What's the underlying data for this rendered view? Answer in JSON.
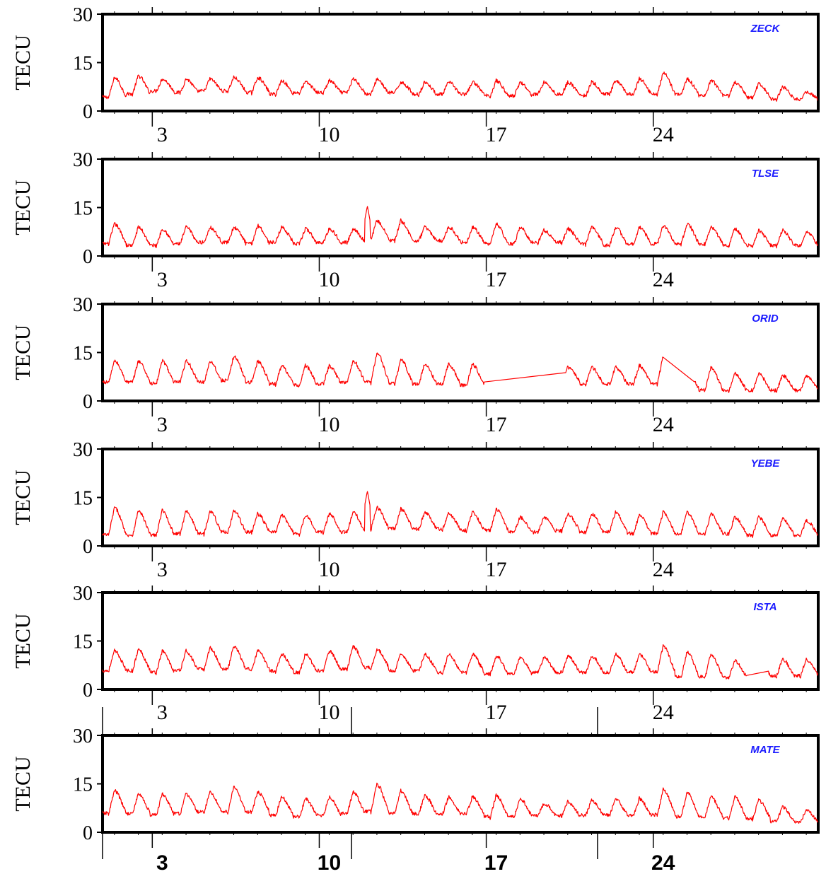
{
  "figure": {
    "line_color": "#ff0000",
    "station_color": "#1a1aff",
    "frame_color": "#000000"
  },
  "chart_data": [
    {
      "type": "line",
      "station": "ZECK",
      "ylabel": "TECU",
      "yticks": [
        "0",
        "15",
        "30"
      ],
      "ylim": [
        0,
        30
      ],
      "xlim": [
        0.5,
        30.5
      ],
      "xticks": [
        "3",
        "10",
        "17",
        "24"
      ],
      "xtick_values": [
        3,
        10,
        17,
        24
      ],
      "daily_min": [
        4,
        5,
        6,
        5.5,
        6,
        6,
        5.5,
        5,
        5.5,
        5.5,
        5.5,
        5,
        5.5,
        5,
        5,
        5,
        4.5,
        4.5,
        5,
        5,
        4.5,
        5,
        5,
        5,
        5,
        4.5,
        4.5,
        4,
        3.5,
        3.5
      ],
      "daily_max": [
        10.5,
        11,
        10,
        10,
        10,
        10.5,
        10.5,
        9.5,
        9,
        9.5,
        10,
        10,
        9,
        9,
        9,
        9,
        9.5,
        9,
        9,
        9,
        9,
        9.5,
        10,
        12,
        10,
        9.5,
        9,
        8.5,
        7.5,
        6
      ],
      "gaps": [],
      "spikes": []
    },
    {
      "type": "line",
      "station": "TLSE",
      "ylabel": "TECU",
      "yticks": [
        "0",
        "15",
        "30"
      ],
      "ylim": [
        0,
        30
      ],
      "xlim": [
        0.5,
        30.5
      ],
      "xticks": [
        "3",
        "10",
        "17",
        "24"
      ],
      "xtick_values": [
        3,
        10,
        17,
        24
      ],
      "daily_min": [
        3.5,
        3,
        3,
        3.5,
        4,
        4,
        3.5,
        4,
        3.5,
        4,
        4,
        5,
        4.5,
        4.5,
        4.5,
        4,
        3.5,
        3.5,
        4,
        4,
        3.5,
        3,
        3.5,
        3.5,
        3.5,
        3.5,
        3,
        3,
        3,
        3
      ],
      "daily_max": [
        10,
        9,
        8.5,
        9,
        9,
        9,
        9.5,
        9,
        8.5,
        8.5,
        8.5,
        11,
        11,
        9,
        9,
        9,
        10,
        9,
        8,
        8.5,
        9,
        9,
        9,
        9.5,
        10,
        9,
        8.5,
        8,
        8,
        7.5
      ],
      "gaps": [],
      "spikes": [
        {
          "x": 11.6,
          "y": 15.5
        }
      ]
    },
    {
      "type": "line",
      "station": "ORID",
      "ylabel": "TECU",
      "yticks": [
        "0",
        "15",
        "30"
      ],
      "ylim": [
        0,
        30
      ],
      "xlim": [
        0.5,
        30.5
      ],
      "xticks": [
        "3",
        "10",
        "17",
        "24"
      ],
      "xtick_values": [
        3,
        10,
        17,
        24
      ],
      "daily_min": [
        5.5,
        5.5,
        5,
        5.5,
        5.5,
        6,
        5.5,
        5,
        4.5,
        5,
        5.5,
        5.5,
        5,
        5,
        5,
        4.5,
        6,
        6,
        6,
        6,
        5,
        5,
        5,
        5,
        3.5,
        3,
        3,
        3,
        3,
        3
      ],
      "daily_max": [
        12.5,
        12.5,
        12.5,
        12.5,
        12.5,
        14,
        12.5,
        11,
        11,
        11,
        12.5,
        15,
        13,
        11.5,
        11.5,
        11.5,
        11,
        10,
        8,
        10.5,
        10.5,
        10.5,
        11,
        14,
        9,
        10.5,
        8.5,
        8.5,
        8,
        8
      ],
      "gaps": [
        [
          16.5,
          19.9
        ],
        [
          24.0,
          25.3
        ]
      ],
      "spikes": []
    },
    {
      "type": "line",
      "station": "YEBE",
      "ylabel": "TECU",
      "yticks": [
        "0",
        "15",
        "30"
      ],
      "ylim": [
        0,
        30
      ],
      "xlim": [
        0.5,
        30.5
      ],
      "xticks": [
        "3",
        "10",
        "17",
        "24"
      ],
      "xtick_values": [
        3,
        10,
        17,
        24
      ],
      "daily_min": [
        3,
        3,
        3,
        3.5,
        3.5,
        4,
        4,
        4,
        3.5,
        4,
        4,
        5,
        5,
        5,
        5,
        4.5,
        4.5,
        4,
        4,
        4.5,
        4,
        4,
        3.5,
        3.5,
        3.5,
        3.5,
        3.5,
        3,
        3,
        3
      ],
      "daily_max": [
        12,
        11,
        11,
        11,
        11,
        11,
        10,
        9.5,
        9.5,
        10,
        10.5,
        12,
        11.5,
        10.5,
        10,
        10.5,
        11.5,
        9,
        9,
        10,
        10,
        10.5,
        9.5,
        10.5,
        10.5,
        10,
        9,
        9,
        8.5,
        8
      ],
      "gaps": [],
      "spikes": [
        {
          "x": 11.6,
          "y": 17
        }
      ]
    },
    {
      "type": "line",
      "station": "ISTA",
      "ylabel": "TECU",
      "yticks": [
        "0",
        "15",
        "30"
      ],
      "ylim": [
        0,
        30
      ],
      "xlim": [
        0.5,
        30.5
      ],
      "xticks": [
        "3",
        "10",
        "17",
        "24"
      ],
      "xtick_values": [
        3,
        10,
        17,
        24
      ],
      "daily_min": [
        5.5,
        5.5,
        5,
        5.5,
        6,
        6,
        6,
        5.5,
        5,
        5.5,
        6,
        6.5,
        5.5,
        5.5,
        5,
        5,
        4.5,
        4.5,
        5,
        5,
        5,
        5,
        5,
        5,
        3.5,
        3.5,
        3.5,
        4,
        4,
        4
      ],
      "daily_max": [
        12,
        12.5,
        12,
        12,
        13,
        13.5,
        12,
        11,
        11,
        12,
        13.5,
        12.5,
        11,
        11,
        11,
        11,
        10.5,
        10,
        10,
        10.5,
        10.5,
        11,
        11,
        13.5,
        12,
        11,
        9,
        9,
        9.5,
        9.5
      ],
      "gaps": [
        [
          27.5,
          28.4
        ]
      ],
      "spikes": []
    },
    {
      "type": "line",
      "station": "MATE",
      "ylabel": "TECU",
      "yticks": [
        "0",
        "15",
        "30"
      ],
      "ylim": [
        0,
        30
      ],
      "xlim": [
        0.5,
        30.5
      ],
      "xticks": [
        "3",
        "10",
        "17",
        "24"
      ],
      "xtick_values": [
        3,
        10,
        17,
        24
      ],
      "daily_min": [
        5.5,
        5.5,
        5,
        5.5,
        6,
        6,
        6,
        5,
        4.5,
        5,
        5.5,
        6,
        5.5,
        5.5,
        5.5,
        5.5,
        4.5,
        4.5,
        5,
        5,
        5,
        5,
        5,
        5,
        4.5,
        4.5,
        4,
        4,
        3,
        3
      ],
      "daily_max": [
        13,
        12,
        12,
        12,
        12.5,
        14,
        12.5,
        11,
        10.5,
        11,
        12.5,
        15,
        13,
        11.5,
        11,
        11,
        11.5,
        10.5,
        9,
        9.5,
        10,
        10.5,
        10.5,
        13.5,
        12.5,
        11,
        11,
        10,
        8,
        7
      ],
      "gaps": [],
      "spikes": []
    }
  ]
}
